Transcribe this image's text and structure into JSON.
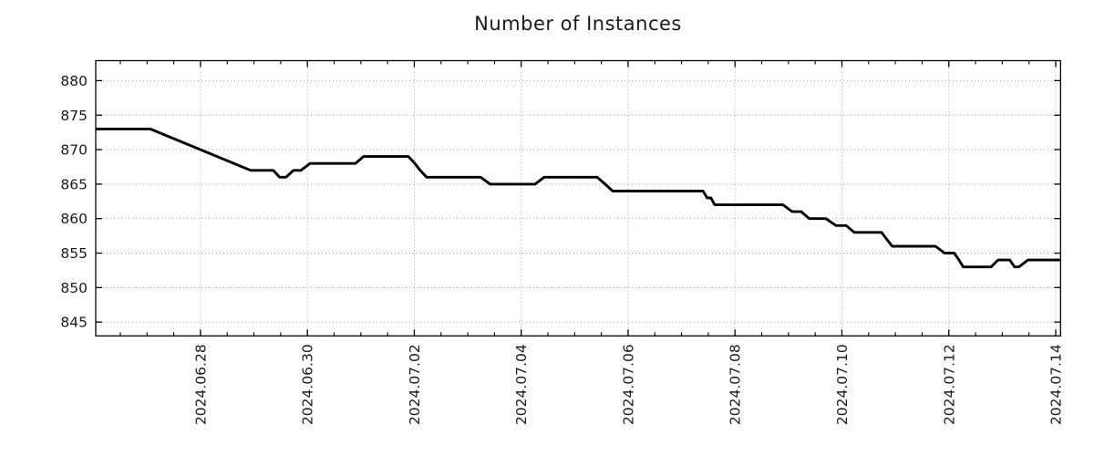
{
  "chart_data": {
    "type": "line",
    "title": "Number of Instances",
    "legend": "none",
    "grid": "dotted",
    "x_axis": {
      "start_date": "2024-06-26",
      "xlim_days": [
        0.04,
        18.09
      ],
      "tick_days": [
        2,
        4,
        6,
        8,
        10,
        12,
        14,
        16,
        18
      ],
      "tick_labels": [
        "2024.06.28",
        "2024.06.30",
        "2024.07.02",
        "2024.07.04",
        "2024.07.06",
        "2024.07.08",
        "2024.07.10",
        "2024.07.12",
        "2024.07.14"
      ],
      "minor_tick_step_days": 0.5
    },
    "y_axis": {
      "ticks": [
        845,
        850,
        855,
        860,
        865,
        870,
        875,
        880
      ],
      "tick_labels": [
        "845",
        "850",
        "855",
        "860",
        "865",
        "870",
        "875",
        "880"
      ],
      "ylim": [
        843.0,
        882.9
      ]
    },
    "series": [
      {
        "name": "instances",
        "color": "#000000",
        "points_day_value": [
          [
            0.04,
            873
          ],
          [
            1.06,
            873
          ],
          [
            2.94,
            867
          ],
          [
            3.36,
            867
          ],
          [
            3.48,
            866
          ],
          [
            3.6,
            866
          ],
          [
            3.74,
            867
          ],
          [
            3.88,
            867
          ],
          [
            4.05,
            868
          ],
          [
            4.9,
            868
          ],
          [
            5.05,
            869
          ],
          [
            5.89,
            869
          ],
          [
            6.01,
            868
          ],
          [
            6.11,
            867
          ],
          [
            6.23,
            866
          ],
          [
            7.24,
            866
          ],
          [
            7.42,
            865
          ],
          [
            8.26,
            865
          ],
          [
            8.43,
            866
          ],
          [
            9.42,
            866
          ],
          [
            9.57,
            865
          ],
          [
            9.71,
            864
          ],
          [
            11.4,
            864
          ],
          [
            11.48,
            863
          ],
          [
            11.55,
            863
          ],
          [
            11.62,
            862
          ],
          [
            12.9,
            862
          ],
          [
            13.07,
            861
          ],
          [
            13.24,
            861
          ],
          [
            13.39,
            860
          ],
          [
            13.7,
            860
          ],
          [
            13.89,
            859
          ],
          [
            14.08,
            859
          ],
          [
            14.23,
            858
          ],
          [
            14.74,
            858
          ],
          [
            14.84,
            857
          ],
          [
            14.94,
            856
          ],
          [
            15.75,
            856
          ],
          [
            15.92,
            855
          ],
          [
            16.1,
            855
          ],
          [
            16.19,
            854
          ],
          [
            16.27,
            853
          ],
          [
            16.79,
            853
          ],
          [
            16.92,
            854
          ],
          [
            17.14,
            854
          ],
          [
            17.23,
            853
          ],
          [
            17.31,
            853
          ],
          [
            17.48,
            854
          ],
          [
            18.08,
            854
          ]
        ]
      }
    ]
  },
  "colors": {
    "background": "#ffffff",
    "axis_border": "#000000",
    "grid": "#9a9a9a",
    "text": "#1a1a1a",
    "line": "#000000"
  }
}
